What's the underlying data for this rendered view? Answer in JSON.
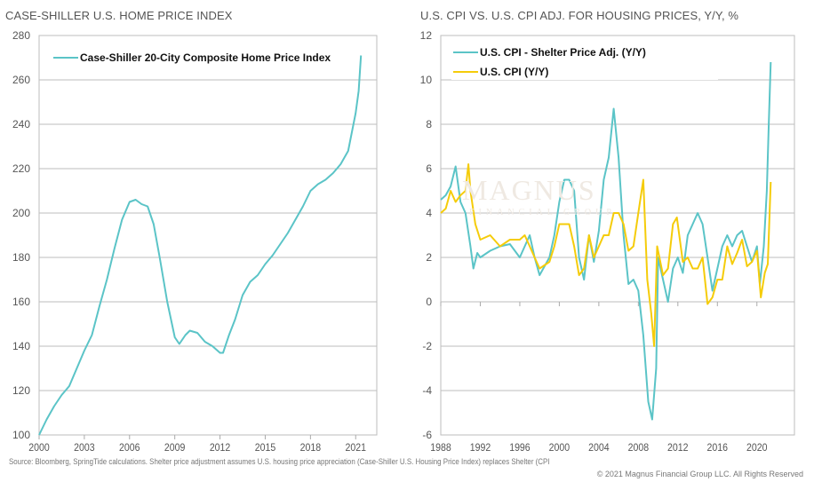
{
  "watermark": {
    "main": "MAGNUS",
    "sub": "FINANCIAL GROUP"
  },
  "footer": {
    "source": "Source: Bloomberg, SpringTide calculations. Shelter price adjustment assumes U.S. housing price appreciation (Case-Shiller U.S. Housing Price Index) replaces Shelter (CPI",
    "copyright": "© 2021 Magnus Financial Group LLC. All Rights Reserved"
  },
  "colors": {
    "teal": "#5bc4c7",
    "yellow": "#f5cc0a",
    "grid": "#bdbdbd"
  },
  "chart_data": [
    {
      "type": "line",
      "title": "CASE-SHILLER U.S. HOME PRICE INDEX",
      "xlim": [
        2000,
        2022.4
      ],
      "ylim": [
        100,
        280
      ],
      "xticks": [
        2000,
        2003,
        2006,
        2009,
        2012,
        2015,
        2018,
        2021
      ],
      "yticks": [
        100,
        120,
        140,
        160,
        180,
        200,
        220,
        240,
        260,
        280
      ],
      "grid": true,
      "legend": "top-left",
      "series": [
        {
          "name": "Case-Shiller 20-City Composite Home Price Index",
          "color": "#5bc4c7",
          "x": [
            2000,
            2000.5,
            2001,
            2001.5,
            2002,
            2002.5,
            2003,
            2003.5,
            2004,
            2004.5,
            2005,
            2005.5,
            2006,
            2006.4,
            2006.8,
            2007.2,
            2007.6,
            2008,
            2008.5,
            2009,
            2009.3,
            2009.7,
            2010,
            2010.5,
            2011,
            2011.5,
            2012,
            2012.2,
            2012.6,
            2013,
            2013.5,
            2014,
            2014.5,
            2015,
            2015.5,
            2016,
            2016.5,
            2017,
            2017.5,
            2018,
            2018.5,
            2019,
            2019.5,
            2020,
            2020.5,
            2021,
            2021.2,
            2021.35
          ],
          "y": [
            100,
            107,
            113,
            118,
            122,
            130,
            138,
            145,
            158,
            170,
            184,
            197,
            205,
            206,
            204,
            203,
            195,
            180,
            160,
            144,
            141,
            145,
            147,
            146,
            142,
            140,
            137,
            137,
            145,
            152,
            163,
            169,
            172,
            177,
            181,
            186,
            191,
            197,
            203,
            210,
            213,
            215,
            218,
            222,
            228,
            245,
            255,
            271
          ]
        }
      ]
    },
    {
      "type": "line",
      "title": "U.S. CPI VS. U.S. CPI ADJ. FOR HOUSING PRICES, Y/Y, %",
      "xlim": [
        1988,
        2023.8
      ],
      "ylim": [
        -6,
        12
      ],
      "xticks": [
        1988,
        1992,
        1996,
        2000,
        2004,
        2008,
        2012,
        2016,
        2020
      ],
      "yticks": [
        -6,
        -4,
        -2,
        0,
        2,
        4,
        6,
        8,
        10,
        12
      ],
      "grid": true,
      "legend": "top-left",
      "series": [
        {
          "name": "U.S. CPI - Shelter Price Adj. (Y/Y)",
          "color": "#5bc4c7",
          "x": [
            1988,
            1988.5,
            1989,
            1989.5,
            1990,
            1990.5,
            1991,
            1991.3,
            1991.7,
            1992,
            1993,
            1994,
            1995,
            1996,
            1996.5,
            1997,
            1997.5,
            1998,
            1999,
            1999.5,
            2000,
            2000.5,
            2001,
            2001.5,
            2002,
            2002.5,
            2003,
            2003.5,
            2004,
            2004.5,
            2005,
            2005.5,
            2006,
            2006.5,
            2007,
            2007.5,
            2008,
            2008.5,
            2009,
            2009.4,
            2009.8,
            2010,
            2010.5,
            2011,
            2011.5,
            2012,
            2012.5,
            2013,
            2013.5,
            2014,
            2014.5,
            2015,
            2015.5,
            2016,
            2016.5,
            2017,
            2017.5,
            2018,
            2018.5,
            2019,
            2019.5,
            2020,
            2020.3,
            2020.7,
            2021,
            2021.2,
            2021.4
          ],
          "y": [
            4.6,
            4.8,
            5.2,
            6.1,
            4.5,
            4.0,
            2.5,
            1.5,
            2.2,
            2.0,
            2.3,
            2.5,
            2.6,
            2.0,
            2.5,
            3.0,
            2.0,
            1.2,
            2.0,
            3.0,
            4.5,
            5.5,
            5.5,
            5.0,
            2.0,
            1.0,
            3.0,
            1.8,
            3.2,
            5.5,
            6.5,
            8.7,
            6.5,
            3.0,
            0.8,
            1.0,
            0.5,
            -1.5,
            -4.5,
            -5.3,
            -3.0,
            2.0,
            1.0,
            0.0,
            1.5,
            2.0,
            1.3,
            3.0,
            3.5,
            4.0,
            3.5,
            2.0,
            0.5,
            1.5,
            2.5,
            3.0,
            2.5,
            3.0,
            3.2,
            2.5,
            1.8,
            2.5,
            0.8,
            2.5,
            5.0,
            8.0,
            10.8
          ]
        },
        {
          "name": "U.S. CPI (Y/Y)",
          "color": "#f5cc0a",
          "x": [
            1988,
            1988.5,
            1989,
            1989.5,
            1990,
            1990.5,
            1990.8,
            1991,
            1991.5,
            1992,
            1993,
            1994,
            1995,
            1996,
            1996.5,
            1997,
            1997.5,
            1998,
            1999,
            1999.5,
            2000,
            2000.5,
            2001,
            2001.5,
            2002,
            2002.5,
            2003,
            2003.5,
            2004,
            2004.5,
            2005,
            2005.5,
            2006,
            2006.5,
            2007,
            2007.5,
            2008,
            2008.5,
            2008.9,
            2009.3,
            2009.6,
            2009.9,
            2010.5,
            2011,
            2011.5,
            2011.9,
            2012.5,
            2013,
            2013.5,
            2014,
            2014.5,
            2015,
            2015.5,
            2016,
            2016.5,
            2017,
            2017.5,
            2018,
            2018.5,
            2019,
            2019.5,
            2020,
            2020.4,
            2020.8,
            2021.1,
            2021.4
          ],
          "y": [
            4.0,
            4.2,
            5.0,
            4.5,
            4.8,
            5.0,
            6.2,
            5.0,
            3.5,
            2.8,
            3.0,
            2.5,
            2.8,
            2.8,
            3.0,
            2.5,
            2.0,
            1.5,
            1.8,
            2.5,
            3.5,
            3.5,
            3.5,
            2.5,
            1.2,
            1.5,
            3.0,
            2.0,
            2.5,
            3.0,
            3.0,
            4.0,
            4.0,
            3.5,
            2.3,
            2.5,
            4.0,
            5.5,
            1.0,
            -0.5,
            -2.0,
            2.5,
            1.2,
            1.5,
            3.5,
            3.8,
            1.8,
            2.0,
            1.5,
            1.5,
            2.0,
            -0.1,
            0.2,
            1.0,
            1.0,
            2.5,
            1.7,
            2.2,
            2.8,
            1.6,
            1.8,
            2.3,
            0.2,
            1.3,
            1.7,
            5.4
          ]
        }
      ]
    }
  ]
}
